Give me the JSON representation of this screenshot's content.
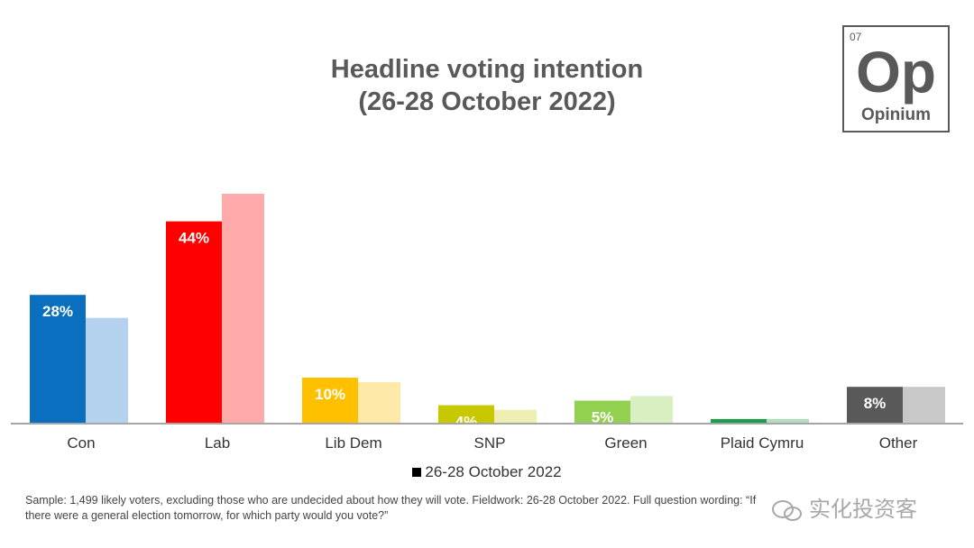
{
  "title": {
    "line1": "Headline voting intention",
    "line2": "(26-28 October 2022)"
  },
  "logo": {
    "number": "07",
    "symbol": "Op",
    "name": "Opinium"
  },
  "chart_data": {
    "type": "bar",
    "title": "Headline voting intention (26-28 October 2022)",
    "xlabel": "",
    "ylabel": "",
    "ylim": [
      0,
      50
    ],
    "grid": false,
    "legend_position": "bottom",
    "categories": [
      "Con",
      "Lab",
      "Lib Dem",
      "SNP",
      "Green",
      "Plaid Cymru",
      "Other"
    ],
    "series": [
      {
        "name": "26-28 October 2022",
        "values": [
          28,
          44,
          10,
          4,
          5,
          1,
          8
        ],
        "labels": [
          "28%",
          "44%",
          "10%",
          "4%",
          "5%",
          "",
          "8%"
        ],
        "colors": [
          "#0b6fc0",
          "#ff0000",
          "#ffc000",
          "#c8c800",
          "#92d050",
          "#1e9c4a",
          "#595959"
        ]
      },
      {
        "name": "",
        "values": [
          23,
          50,
          9,
          3,
          6,
          1,
          8
        ],
        "colors": [
          "#b4d2ee",
          "#ffaaaa",
          "#ffe9a8",
          "#efefb4",
          "#d8efc2",
          "#b3dcc1",
          "#c8c8c8"
        ]
      }
    ]
  },
  "legend": {
    "label": "26-28 October 2022"
  },
  "footnote": "Sample: 1,499  likely voters, excluding those who are undecided about how they will vote. Fieldwork: 26-28 October 2022. Full question wording: “If there were a general election tomorrow, for which party would you vote?”",
  "watermark": "实化投资客"
}
